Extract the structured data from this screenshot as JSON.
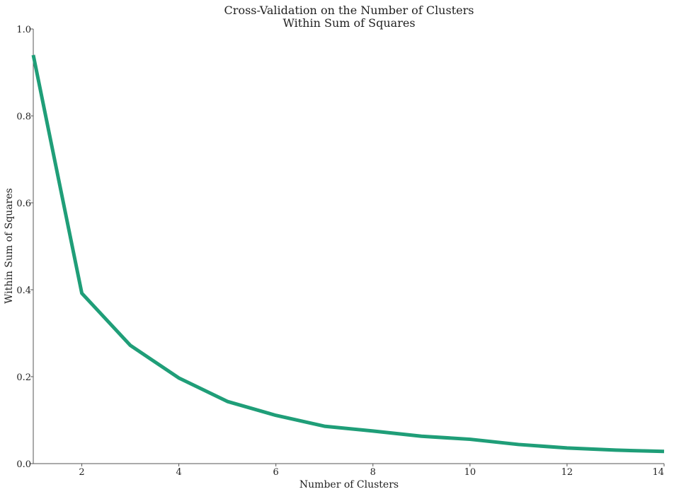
{
  "chart_data": {
    "type": "line",
    "title": "Cross-Validation on the Number of Clusters",
    "subtitle": "Within Sum of Squares",
    "xlabel": "Number of Clusters",
    "ylabel": "Within Sum of Squares",
    "xlim": [
      1,
      14
    ],
    "ylim": [
      0.0,
      1.0
    ],
    "xticks": [
      2,
      4,
      6,
      8,
      10,
      12,
      14
    ],
    "yticks": [
      0.0,
      0.2,
      0.4,
      0.6,
      0.8,
      1.0
    ],
    "xtick_labels": [
      "2",
      "4",
      "6",
      "8",
      "10",
      "12",
      "14"
    ],
    "ytick_labels": [
      "0.0",
      "0.2",
      "0.4",
      "0.6",
      "0.8",
      "1.0"
    ],
    "grid": false,
    "series": [
      {
        "color": "#1f9e78",
        "x": [
          1,
          2,
          3,
          4,
          5,
          6,
          7,
          8,
          9,
          10,
          11,
          12,
          13,
          14
        ],
        "y": [
          0.94,
          0.392,
          0.272,
          0.197,
          0.143,
          0.111,
          0.086,
          0.075,
          0.063,
          0.056,
          0.044,
          0.036,
          0.031,
          0.028
        ]
      }
    ]
  }
}
